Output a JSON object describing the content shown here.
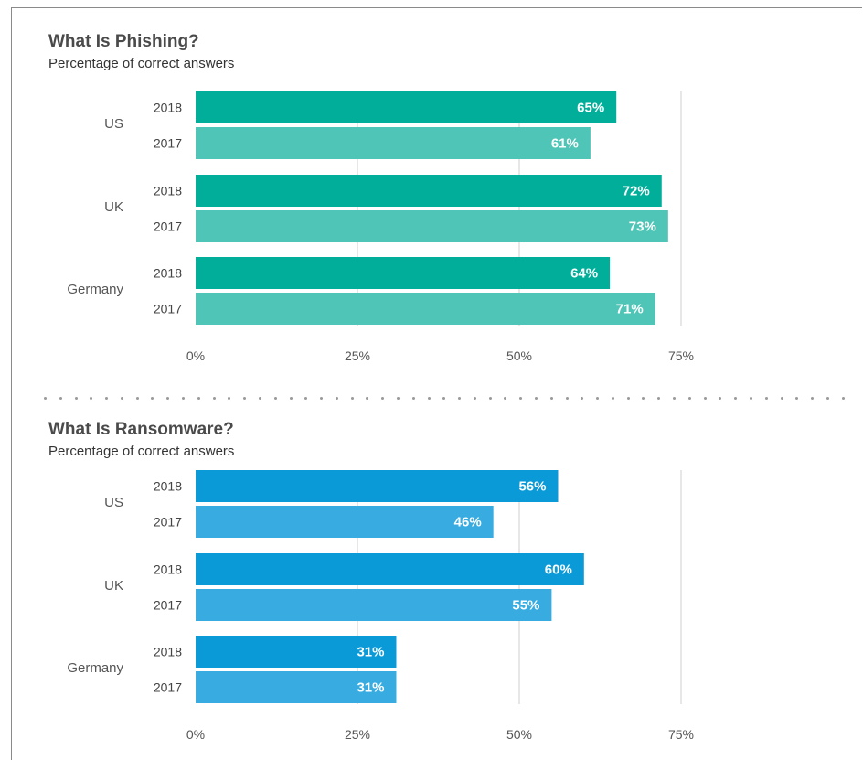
{
  "charts": [
    {
      "title": "What Is Phishing?",
      "subtitle": "Percentage of correct answers",
      "color_2018": "#00AE9A",
      "color_2017": "#4EC5B6"
    },
    {
      "title": "What Is Ransomware?",
      "subtitle": "Percentage of correct answers",
      "color_2018": "#0A9AD8",
      "color_2017": "#38ACE1"
    }
  ],
  "chart_data": [
    {
      "type": "bar",
      "orientation": "horizontal",
      "title": "What Is Phishing?",
      "subtitle": "Percentage of correct answers",
      "groups": [
        "US",
        "UK",
        "Germany"
      ],
      "series": [
        {
          "name": "2018",
          "values": [
            65,
            72,
            64
          ]
        },
        {
          "name": "2017",
          "values": [
            61,
            73,
            71
          ]
        }
      ],
      "data_labels": {
        "US": [
          "65%",
          "61%"
        ],
        "UK": [
          "72%",
          "73%"
        ],
        "Germany": [
          "64%",
          "71%"
        ]
      },
      "xticks": [
        "0%",
        "25%",
        "50%",
        "75%"
      ],
      "xlim": [
        0,
        100
      ],
      "grid": true
    },
    {
      "type": "bar",
      "orientation": "horizontal",
      "title": "What Is Ransomware?",
      "subtitle": "Percentage of correct answers",
      "groups": [
        "US",
        "UK",
        "Germany"
      ],
      "series": [
        {
          "name": "2018",
          "values": [
            56,
            60,
            31
          ]
        },
        {
          "name": "2017",
          "values": [
            46,
            55,
            31
          ]
        }
      ],
      "data_labels": {
        "US": [
          "56%",
          "46%"
        ],
        "UK": [
          "60%",
          "55%"
        ],
        "Germany": [
          "31%",
          "31%"
        ]
      },
      "xticks": [
        "0%",
        "25%",
        "50%",
        "75%"
      ],
      "xlim": [
        0,
        100
      ],
      "grid": true
    }
  ]
}
